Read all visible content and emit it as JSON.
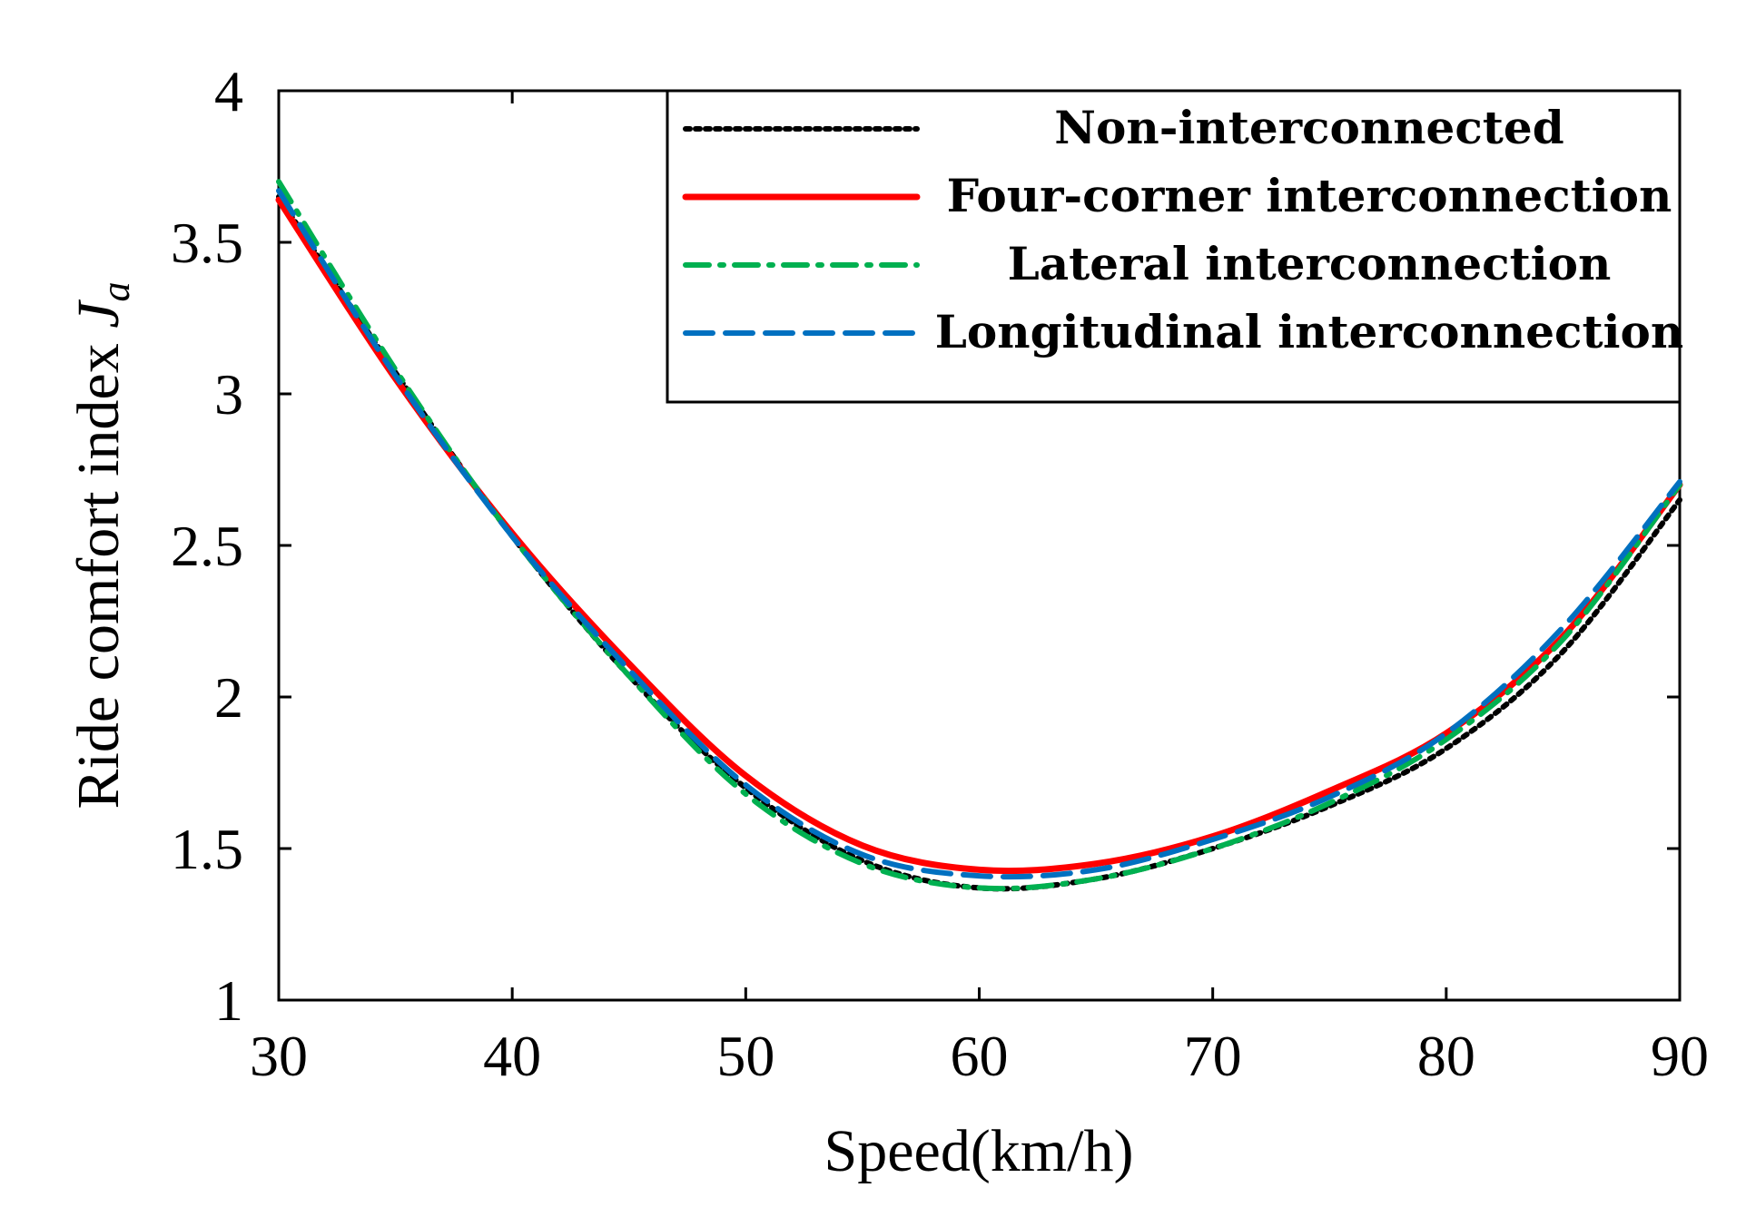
{
  "chart_data": {
    "type": "line",
    "title": "",
    "xlabel": "Speed(km/h)",
    "ylabel": "Ride comfort index ",
    "ylabel_symbol": "J",
    "ylabel_subscript": "a",
    "xlim": [
      30,
      90
    ],
    "ylim": [
      1,
      4
    ],
    "xticks": [
      30,
      40,
      50,
      60,
      70,
      80,
      90
    ],
    "yticks": [
      1,
      1.5,
      2,
      2.5,
      3,
      3.5,
      4
    ],
    "xtick_labels": [
      "30",
      "40",
      "50",
      "60",
      "70",
      "80",
      "90"
    ],
    "ytick_labels": [
      "1",
      "1.5",
      "2",
      "2.5",
      "3",
      "3.5",
      "4"
    ],
    "grid": false,
    "legend_position": "top-right",
    "x": [
      30,
      35,
      40,
      45,
      50,
      55,
      60,
      65,
      70,
      75,
      80,
      85,
      90
    ],
    "series": [
      {
        "name": "Non-interconnected",
        "color": "#000000",
        "style": "dotted",
        "values": [
          3.65,
          3.07,
          2.53,
          2.07,
          1.7,
          1.46,
          1.37,
          1.4,
          1.5,
          1.64,
          1.83,
          2.15,
          2.65
        ]
      },
      {
        "name": "Four-corner interconnection",
        "color": "#ff0000",
        "style": "solid",
        "values": [
          3.64,
          3.05,
          2.54,
          2.11,
          1.74,
          1.51,
          1.43,
          1.45,
          1.54,
          1.69,
          1.88,
          2.2,
          2.7
        ]
      },
      {
        "name": "Lateral interconnection",
        "color": "#00b050",
        "style": "dashdot",
        "values": [
          3.7,
          3.08,
          2.53,
          2.07,
          1.68,
          1.45,
          1.37,
          1.4,
          1.5,
          1.65,
          1.86,
          2.19,
          2.7
        ]
      },
      {
        "name": "Longitudinal interconnection",
        "color": "#0070c0",
        "style": "dashed",
        "values": [
          3.67,
          3.06,
          2.53,
          2.09,
          1.71,
          1.48,
          1.41,
          1.43,
          1.53,
          1.67,
          1.88,
          2.23,
          2.71
        ]
      }
    ]
  }
}
